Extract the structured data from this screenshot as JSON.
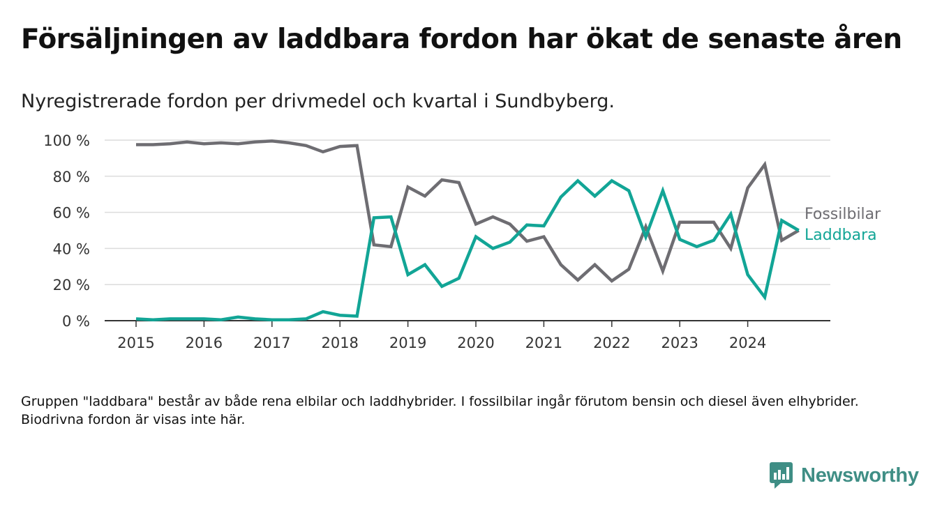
{
  "header": {
    "title": "Försäljningen av laddbara fordon har ökat de senaste åren",
    "subtitle": "Nyregistrerade fordon per drivmedel och kvartal i Sundbyberg."
  },
  "footer": {
    "note": "Gruppen \"laddbara\" består av både rena elbilar och laddhybrider. I fossilbilar ingår förutom bensin och diesel även elhybrider. Biodrivna fordon är visas inte här.",
    "brand": "Newsworthy"
  },
  "colors": {
    "fossil": "#6e6d72",
    "laddbara": "#12a596",
    "grid": "#dcdcdc",
    "axis": "#333333",
    "brand": "#3f8e85"
  },
  "chart_data": {
    "type": "line",
    "title": "Försäljningen av laddbara fordon har ökat de senaste åren",
    "subtitle": "Nyregistrerade fordon per drivmedel och kvartal i Sundbyberg.",
    "xlabel": "",
    "ylabel": "",
    "ylim": [
      0,
      100
    ],
    "yticks": [
      0,
      20,
      40,
      60,
      80,
      100
    ],
    "ytick_labels": [
      "0 %",
      "20 %",
      "40 %",
      "60 %",
      "80 %",
      "100 %"
    ],
    "xticks": [
      2015,
      2016,
      2017,
      2018,
      2019,
      2020,
      2021,
      2022,
      2023,
      2024
    ],
    "xtick_labels": [
      "2015",
      "2016",
      "2017",
      "2018",
      "2019",
      "2020",
      "2021",
      "2022",
      "2023",
      "2024"
    ],
    "x_start": 2015,
    "x_step": 0.25,
    "grid": true,
    "legend_position": "right, next to line ends",
    "series": [
      {
        "name": "Fossilbilar",
        "color": "#6e6d72",
        "values": [
          97.5,
          97.5,
          98,
          99,
          98,
          98.5,
          98,
          99,
          99.5,
          98.5,
          97,
          93.5,
          96.5,
          97,
          42,
          41,
          74,
          69,
          78,
          76.5,
          53.5,
          57.5,
          53.5,
          44,
          46.5,
          31,
          22.5,
          31,
          22,
          28.5,
          52,
          27.5,
          54.5,
          54.5,
          54.5,
          40,
          73.5,
          86.5,
          44.5,
          50
        ]
      },
      {
        "name": "Laddbara",
        "color": "#12a596",
        "values": [
          1,
          0.5,
          1,
          1,
          1,
          0.5,
          2,
          1,
          0.5,
          0.5,
          1,
          5,
          3,
          2.5,
          57,
          57.5,
          25.5,
          31,
          19,
          23.5,
          46.5,
          40,
          43.5,
          53,
          52.5,
          68.5,
          77.5,
          69,
          77.5,
          72,
          46.5,
          72,
          45,
          41,
          44.5,
          59,
          25.5,
          13,
          55.5,
          50
        ]
      }
    ]
  }
}
